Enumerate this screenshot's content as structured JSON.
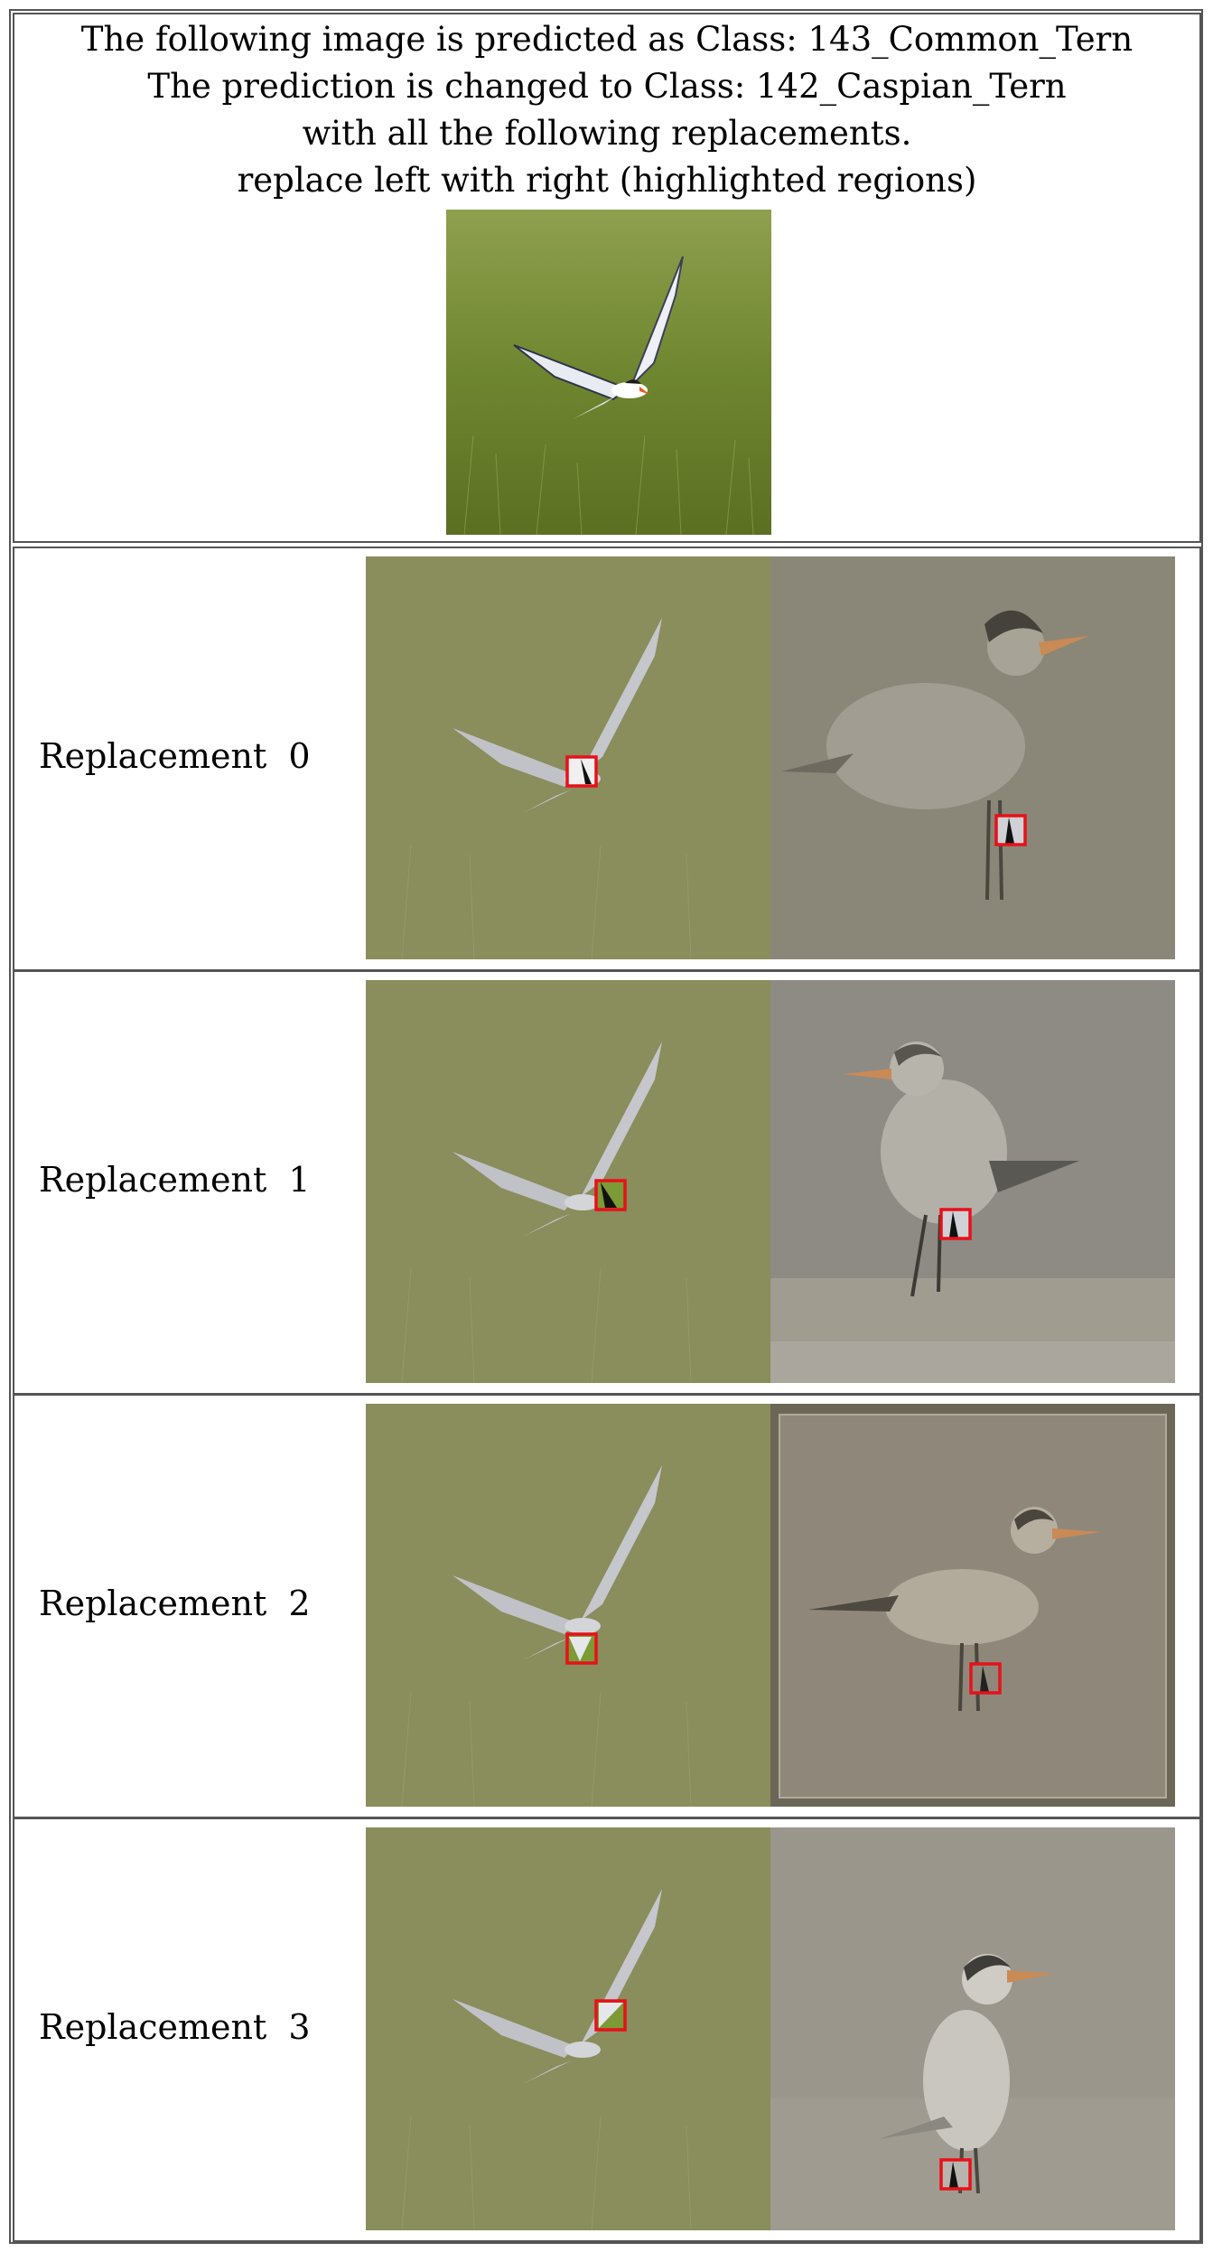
{
  "header": {
    "line1": "The following image is predicted as Class: 143_Common_Tern",
    "line2": "The prediction is changed to Class: 142_Caspian_Tern",
    "line3": "with all the following replacements.",
    "line4": "replace left with right (highlighted regions)"
  },
  "replacements": [
    {
      "label": "Replacement  0"
    },
    {
      "label": "Replacement  1"
    },
    {
      "label": "Replacement  2"
    },
    {
      "label": "Replacement  3"
    }
  ],
  "colors": {
    "highlight": "#e8101a",
    "grass": "#7a8c3a",
    "border": "#555555"
  }
}
